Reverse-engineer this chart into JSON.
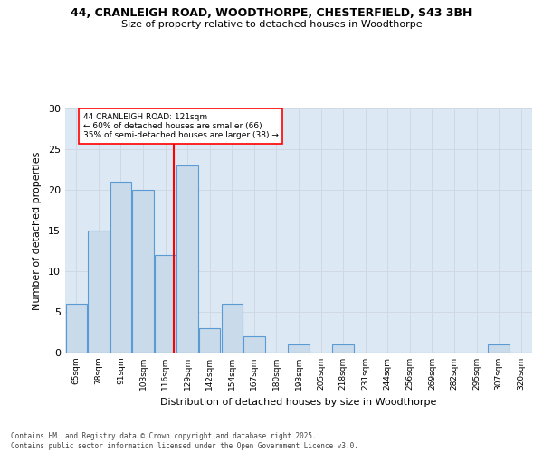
{
  "title1": "44, CRANLEIGH ROAD, WOODTHORPE, CHESTERFIELD, S43 3BH",
  "title2": "Size of property relative to detached houses in Woodthorpe",
  "xlabel": "Distribution of detached houses by size in Woodthorpe",
  "ylabel": "Number of detached properties",
  "categories": [
    "65sqm",
    "78sqm",
    "91sqm",
    "103sqm",
    "116sqm",
    "129sqm",
    "142sqm",
    "154sqm",
    "167sqm",
    "180sqm",
    "193sqm",
    "205sqm",
    "218sqm",
    "231sqm",
    "244sqm",
    "256sqm",
    "269sqm",
    "282sqm",
    "295sqm",
    "307sqm",
    "320sqm"
  ],
  "values": [
    6,
    15,
    21,
    20,
    12,
    23,
    3,
    6,
    2,
    0,
    1,
    0,
    1,
    0,
    0,
    0,
    0,
    0,
    0,
    1,
    0
  ],
  "bar_color": "#c9daea",
  "bar_edge_color": "#5b9bd5",
  "grid_color": "#d0d8e4",
  "vline_color": "red",
  "annotation_text": "44 CRANLEIGH ROAD: 121sqm\n← 60% of detached houses are smaller (66)\n35% of semi-detached houses are larger (38) →",
  "annotation_box_color": "white",
  "annotation_box_edge_color": "red",
  "ylim": [
    0,
    30
  ],
  "yticks": [
    0,
    5,
    10,
    15,
    20,
    25,
    30
  ],
  "footer": "Contains HM Land Registry data © Crown copyright and database right 2025.\nContains public sector information licensed under the Open Government Licence v3.0.",
  "bg_color": "#dce9f5"
}
